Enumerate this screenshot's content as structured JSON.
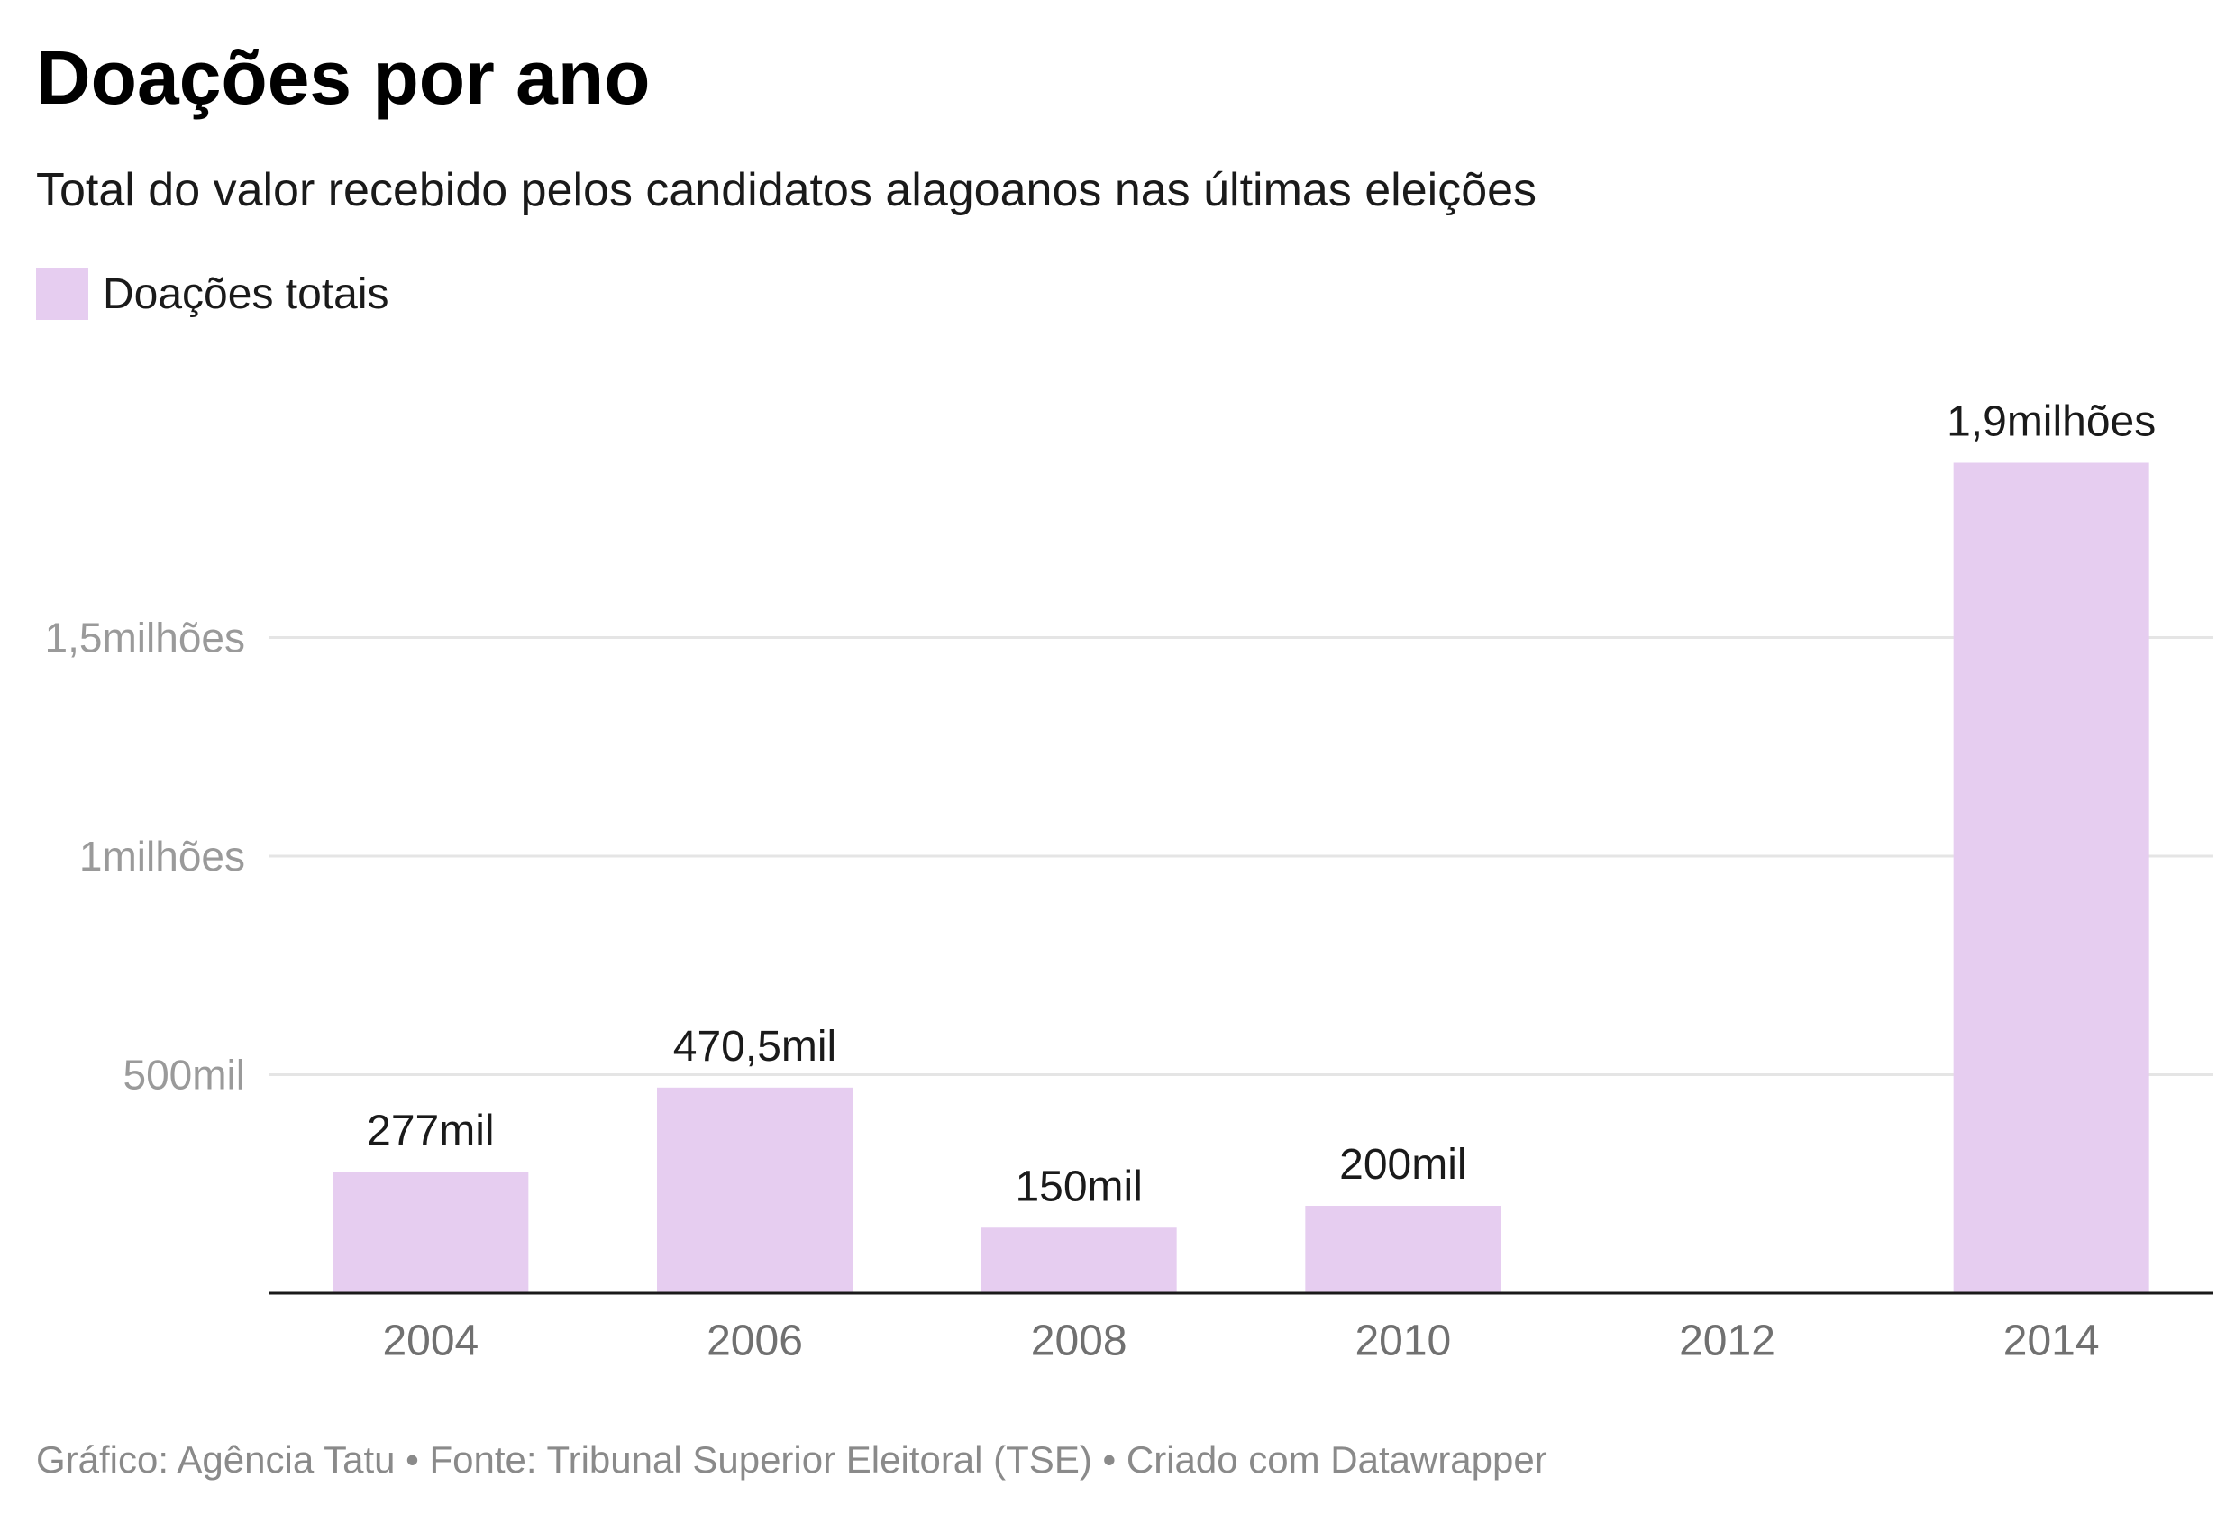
{
  "footer": "Gráfico: Agência Tatu • Fonte: Tribunal Superior Eleitoral (TSE) • Criado com Datawrapper",
  "colors": {
    "bar": "#e6cdf0",
    "gridline": "#e5e5e5",
    "axis": "#1a1a1a",
    "tick_label": "#9a9a9a",
    "x_label": "#707070",
    "value_label": "#1a1a1a"
  },
  "chart_data": {
    "type": "bar",
    "title": "Doações por ano",
    "subtitle": "Total do valor recebido pelos candidatos alagoanos nas últimas eleições",
    "legend": "top-left",
    "grid": true,
    "categories": [
      "2004",
      "2006",
      "2008",
      "2010",
      "2012",
      "2014"
    ],
    "series": [
      {
        "name": "Doações totais",
        "values": [
          277000,
          470500,
          150000,
          200000,
          0,
          1900000
        ],
        "value_labels": [
          "277mil",
          "470,5mil",
          "150mil",
          "200mil",
          "",
          "1,9milhões"
        ]
      }
    ],
    "ylim": [
      0,
      2000000
    ],
    "yticks": [
      {
        "value": 500000,
        "label": "500mil"
      },
      {
        "value": 1000000,
        "label": "1milhões"
      },
      {
        "value": 1500000,
        "label": "1,5milhões"
      }
    ],
    "xlabel": "",
    "ylabel": ""
  }
}
